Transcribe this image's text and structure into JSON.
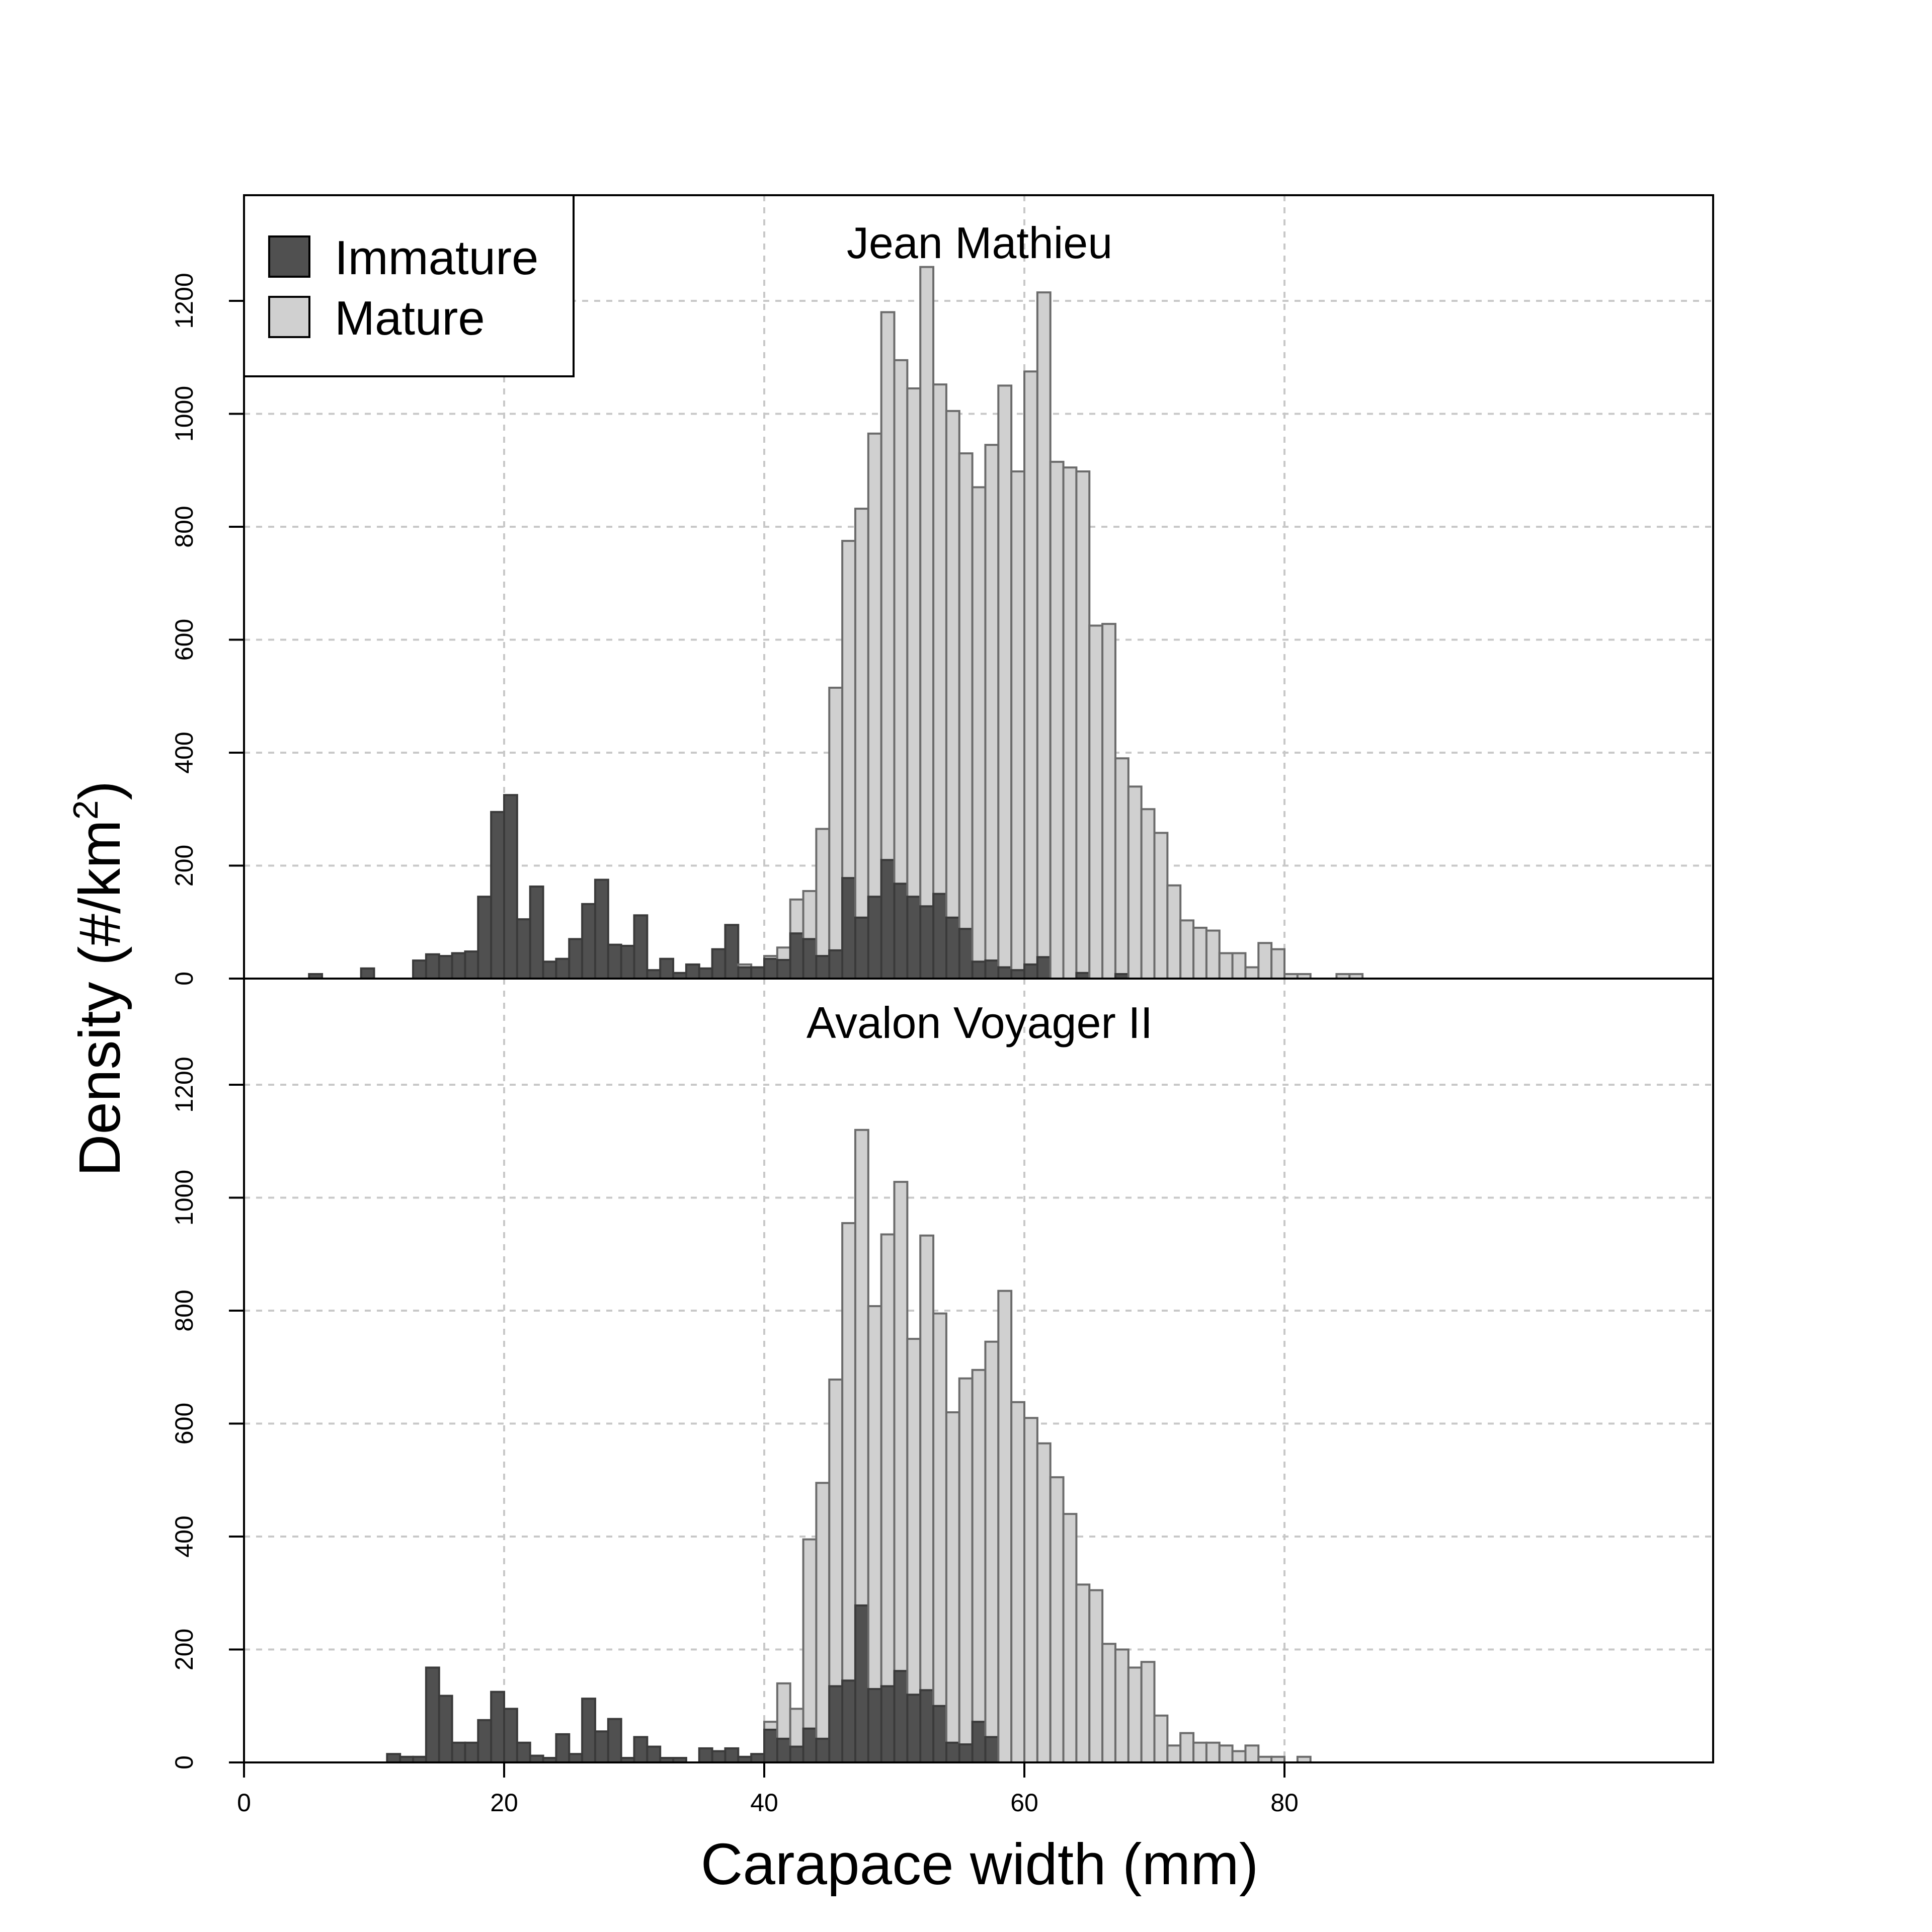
{
  "chart_data": [
    {
      "type": "histogram-stacked",
      "title": "Jean Mathieu",
      "ylabel": "Density (#/km2)",
      "xlabel": "Carapace width (mm)",
      "xlim": [
        0,
        90
      ],
      "ylim": [
        0,
        1390
      ],
      "xticks": [
        0,
        20,
        40,
        60,
        80
      ],
      "yticks": [
        0,
        200,
        400,
        600,
        800,
        1000,
        1200
      ],
      "grid": true,
      "legend_position": "top-left",
      "bin_width_mm": 1,
      "bin_starts": [
        5,
        6,
        7,
        8,
        9,
        10,
        11,
        12,
        13,
        14,
        15,
        16,
        17,
        18,
        19,
        20,
        21,
        22,
        23,
        24,
        25,
        26,
        27,
        28,
        29,
        30,
        31,
        32,
        33,
        34,
        35,
        36,
        37,
        38,
        39,
        40,
        41,
        42,
        43,
        44,
        45,
        46,
        47,
        48,
        49,
        50,
        51,
        52,
        53,
        54,
        55,
        56,
        57,
        58,
        59,
        60,
        61,
        62,
        63,
        64,
        65,
        66,
        67,
        68,
        69,
        70,
        71,
        72,
        73,
        74,
        75,
        76,
        77,
        78,
        79,
        80,
        81,
        82,
        83,
        84,
        85
      ],
      "series": [
        {
          "name": "Immature",
          "color": "#505050",
          "values": [
            8,
            0,
            0,
            0,
            18,
            0,
            0,
            0,
            32,
            43,
            40,
            45,
            48,
            145,
            295,
            325,
            105,
            163,
            30,
            35,
            70,
            132,
            175,
            60,
            58,
            112,
            15,
            35,
            10,
            25,
            18,
            52,
            95,
            20,
            20,
            35,
            33,
            80,
            70,
            40,
            50,
            178,
            108,
            145,
            210,
            168,
            145,
            128,
            150,
            108,
            88,
            30,
            32,
            20,
            15,
            25,
            38,
            0,
            0,
            10,
            0,
            0,
            8,
            0,
            0,
            0,
            0,
            0,
            0,
            0,
            0,
            0,
            0,
            0,
            0,
            0,
            0,
            0,
            0,
            0,
            0
          ],
          "total_values": [
            8,
            0,
            0,
            0,
            18,
            0,
            0,
            0,
            32,
            43,
            40,
            45,
            48,
            145,
            295,
            325,
            105,
            163,
            30,
            35,
            70,
            132,
            175,
            60,
            58,
            112,
            15,
            35,
            10,
            25,
            18,
            52,
            95,
            25,
            20,
            40,
            55,
            140,
            155,
            265,
            515,
            775,
            832,
            965,
            1180,
            1095,
            1045,
            1260,
            1052,
            1005,
            930,
            870,
            945,
            1050,
            898,
            1075,
            1215,
            915,
            905,
            898,
            625,
            628,
            390,
            340,
            300,
            258,
            165,
            103,
            90,
            85,
            45,
            45,
            20,
            63,
            52,
            8,
            8,
            0,
            0,
            8,
            8
          ]
        },
        {
          "name": "Mature",
          "color": "#d0d0d0",
          "values": [
            0,
            0,
            0,
            0,
            0,
            0,
            0,
            0,
            0,
            0,
            0,
            0,
            0,
            0,
            0,
            0,
            0,
            0,
            0,
            0,
            0,
            0,
            0,
            0,
            0,
            0,
            0,
            0,
            0,
            0,
            0,
            0,
            0,
            5,
            0,
            5,
            22,
            60,
            85,
            225,
            465,
            597,
            724,
            820,
            970,
            927,
            900,
            1132,
            902,
            897,
            842,
            840,
            913,
            1030,
            883,
            1050,
            1177,
            915,
            905,
            888,
            625,
            628,
            382,
            340,
            300,
            258,
            165,
            103,
            90,
            85,
            45,
            45,
            20,
            63,
            52,
            8,
            8,
            0,
            0,
            8,
            8
          ]
        }
      ]
    },
    {
      "type": "histogram-stacked",
      "title": "Avalon Voyager II",
      "ylabel": "Density (#/km2)",
      "xlabel": "Carapace width (mm)",
      "xlim": [
        0,
        90
      ],
      "ylim": [
        0,
        1390
      ],
      "xticks": [
        0,
        20,
        40,
        60,
        80
      ],
      "yticks": [
        0,
        200,
        400,
        600,
        800,
        1000,
        1200
      ],
      "grid": true,
      "bin_width_mm": 1,
      "bin_starts": [
        11,
        12,
        13,
        14,
        15,
        16,
        17,
        18,
        19,
        20,
        21,
        22,
        23,
        24,
        25,
        26,
        27,
        28,
        29,
        30,
        31,
        32,
        33,
        34,
        35,
        36,
        37,
        38,
        39,
        40,
        41,
        42,
        43,
        44,
        45,
        46,
        47,
        48,
        49,
        50,
        51,
        52,
        53,
        54,
        55,
        56,
        57,
        58,
        59,
        60,
        61,
        62,
        63,
        64,
        65,
        66,
        67,
        68,
        69,
        70,
        71,
        72,
        73,
        74,
        75,
        76,
        77,
        78,
        79,
        80,
        81,
        82
      ],
      "series": [
        {
          "name": "Immature",
          "color": "#505050",
          "values": [
            15,
            10,
            10,
            168,
            118,
            35,
            35,
            75,
            125,
            95,
            35,
            12,
            8,
            50,
            15,
            113,
            55,
            77,
            8,
            45,
            28,
            8,
            8,
            0,
            25,
            20,
            25,
            10,
            15,
            58,
            42,
            28,
            60,
            42,
            135,
            145,
            278,
            130,
            135,
            162,
            120,
            128,
            100,
            35,
            32,
            72,
            45,
            0,
            0,
            0,
            0,
            0,
            0,
            0,
            0,
            0,
            0,
            0,
            0,
            0,
            0,
            0,
            0,
            0,
            0,
            0,
            0,
            0,
            0,
            0,
            0,
            0
          ],
          "total_values": [
            15,
            10,
            10,
            168,
            118,
            35,
            35,
            75,
            125,
            95,
            35,
            12,
            8,
            50,
            15,
            113,
            55,
            77,
            8,
            45,
            28,
            8,
            8,
            0,
            25,
            20,
            25,
            10,
            15,
            72,
            140,
            95,
            395,
            495,
            678,
            955,
            1120,
            808,
            935,
            1028,
            750,
            933,
            795,
            620,
            680,
            695,
            745,
            835,
            638,
            610,
            565,
            505,
            440,
            315,
            305,
            210,
            200,
            168,
            178,
            83,
            30,
            52,
            35,
            35,
            30,
            20,
            30,
            10,
            10,
            0,
            10,
            0
          ]
        },
        {
          "name": "Mature",
          "color": "#d0d0d0",
          "values": [
            0,
            0,
            0,
            0,
            0,
            0,
            0,
            0,
            0,
            0,
            0,
            0,
            0,
            0,
            0,
            0,
            0,
            0,
            0,
            0,
            0,
            0,
            0,
            0,
            0,
            0,
            0,
            0,
            0,
            14,
            98,
            67,
            335,
            453,
            543,
            810,
            842,
            678,
            800,
            866,
            630,
            805,
            695,
            585,
            648,
            623,
            700,
            835,
            638,
            610,
            565,
            505,
            440,
            315,
            305,
            210,
            200,
            168,
            178,
            83,
            30,
            52,
            35,
            35,
            30,
            20,
            30,
            10,
            10,
            0,
            10,
            0
          ]
        }
      ]
    }
  ],
  "panels": [
    {
      "title": "Jean Mathieu"
    },
    {
      "title": "Avalon Voyager II"
    }
  ],
  "axes": {
    "xlabel": "Carapace width (mm)",
    "ylabel_main": "Density (#/km",
    "ylabel_sup": "2",
    "ylabel_close": ")",
    "xtick_labels": [
      "0",
      "20",
      "40",
      "60",
      "80"
    ],
    "ytick_labels": [
      "0",
      "200",
      "400",
      "600",
      "800",
      "1000",
      "1200"
    ]
  },
  "legend": {
    "items": [
      {
        "label": "Immature",
        "color": "#505050"
      },
      {
        "label": "Mature",
        "color": "#d0d0d0"
      }
    ]
  }
}
